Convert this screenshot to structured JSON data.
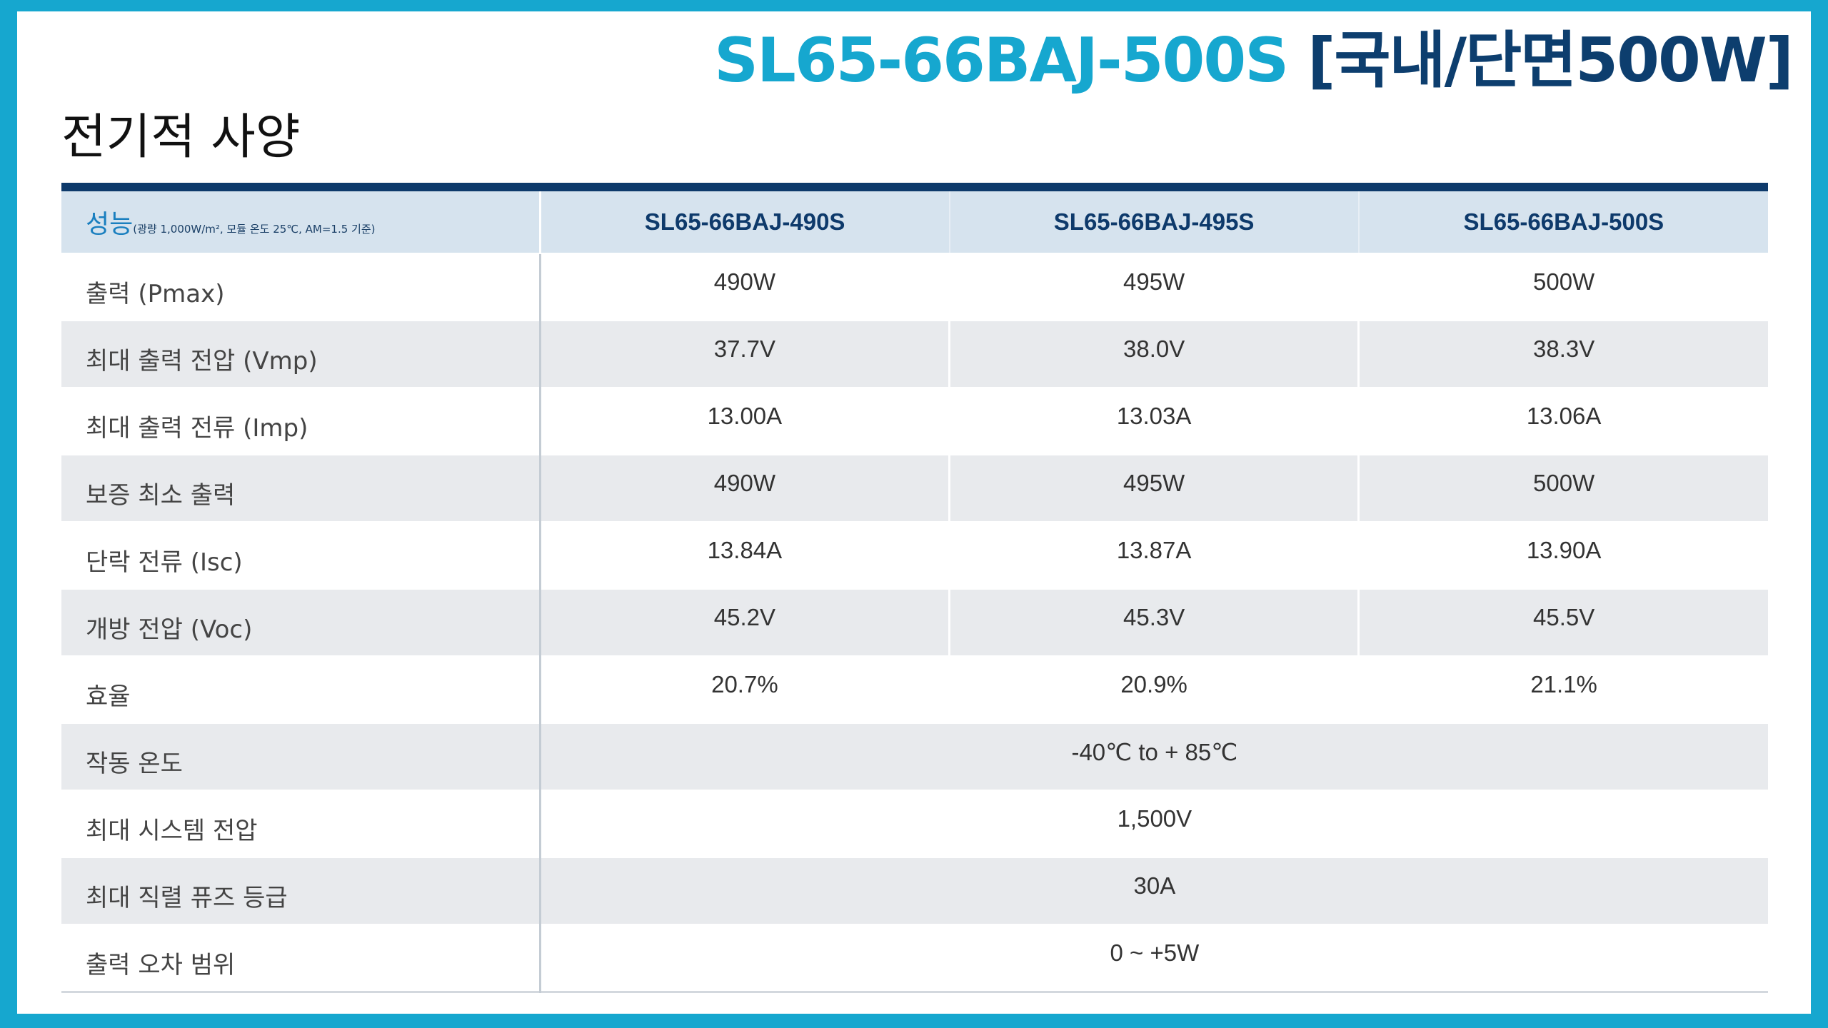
{
  "header": {
    "model": "SL65-66BAJ-500S",
    "variant": "[국내/단면500W]",
    "section_title": "전기적 사양"
  },
  "table": {
    "perf_label": "성능",
    "perf_note": "(광량 1,000W/m², 모듈 온도 25℃, AM=1.5 기준)",
    "models": [
      "SL65-66BAJ-490S",
      "SL65-66BAJ-495S",
      "SL65-66BAJ-500S"
    ],
    "rows": [
      {
        "label": "출력 (Pmax)",
        "values": [
          "490W",
          "495W",
          "500W"
        ]
      },
      {
        "label": "최대 출력 전압 (Vmp)",
        "values": [
          "37.7V",
          "38.0V",
          "38.3V"
        ]
      },
      {
        "label": "최대 출력 전류 (Imp)",
        "values": [
          "13.00A",
          "13.03A",
          "13.06A"
        ]
      },
      {
        "label": "보증 최소 출력",
        "values": [
          "490W",
          "495W",
          "500W"
        ]
      },
      {
        "label": "단락 전류 (Isc)",
        "values": [
          "13.84A",
          "13.87A",
          "13.90A"
        ]
      },
      {
        "label": "개방 전압 (Voc)",
        "values": [
          "45.2V",
          "45.3V",
          "45.5V"
        ]
      },
      {
        "label": "효율",
        "values": [
          "20.7%",
          "20.9%",
          "21.1%"
        ]
      },
      {
        "label": "작동 온도",
        "value": "-40℃ to + 85℃"
      },
      {
        "label": "최대 시스템 전압",
        "value": "1,500V"
      },
      {
        "label": "최대 직렬 퓨즈 등급",
        "value": "30A"
      },
      {
        "label": "출력 오차 범위",
        "value": "0 ~ +5W"
      }
    ]
  },
  "colors": {
    "frame": "#16a7cf",
    "model_title": "#16a7cf",
    "variant_title": "#0d3e6e",
    "table_rule": "#0e3a6b",
    "header_bg": "#d6e3ee",
    "stripe_bg": "#e8eaed"
  }
}
